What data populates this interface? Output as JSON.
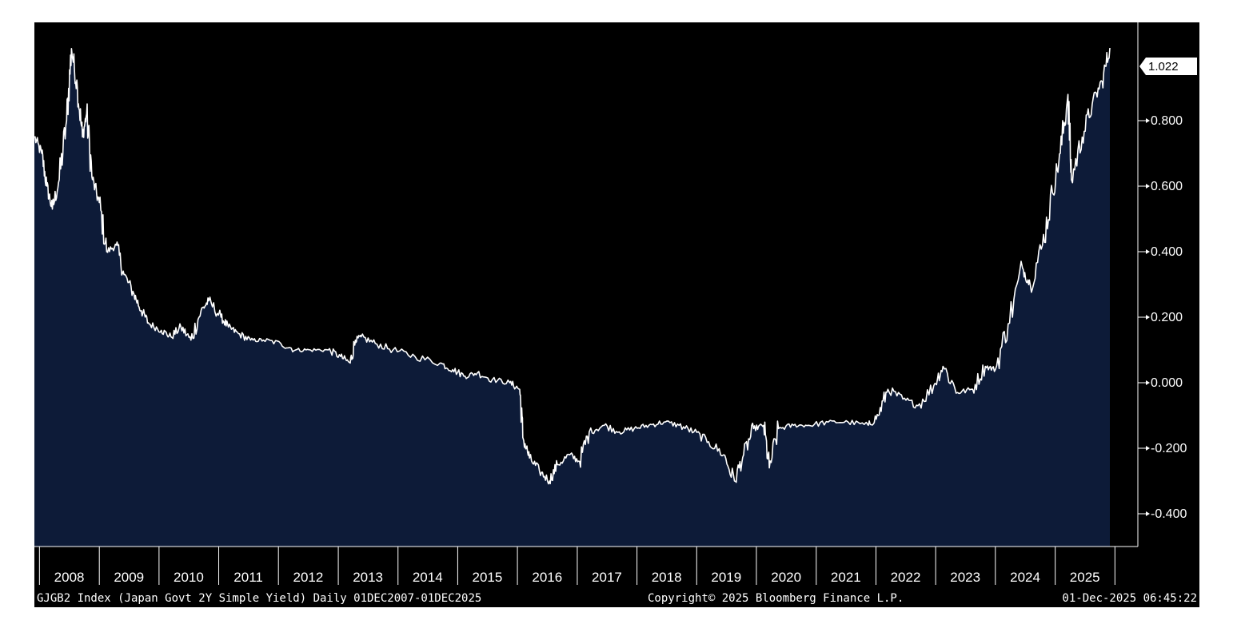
{
  "chart_data": {
    "type": "area",
    "x_range": [
      "2007-12-01",
      "2025-12-01"
    ],
    "ylim": [
      -0.5,
      1.1
    ],
    "y_ticks": [
      {
        "value": 0.8,
        "label": "0.800"
      },
      {
        "value": 0.6,
        "label": "0.600"
      },
      {
        "value": 0.4,
        "label": "0.400"
      },
      {
        "value": 0.2,
        "label": "0.200"
      },
      {
        "value": 0.0,
        "label": "0.000"
      },
      {
        "value": -0.2,
        "label": "-0.200"
      },
      {
        "value": -0.4,
        "label": "-0.400"
      }
    ],
    "x_tick_labels": [
      "2008",
      "2009",
      "2010",
      "2011",
      "2012",
      "2013",
      "2014",
      "2015",
      "2016",
      "2017",
      "2018",
      "2019",
      "2020",
      "2021",
      "2022",
      "2023",
      "2024",
      "2025"
    ],
    "last_value": {
      "value": 1.022,
      "label": "1.022"
    },
    "grid": false,
    "colors": {
      "background": "#000000",
      "area_fill": "#0d1b38",
      "line": "#ffffff",
      "footer_bg": "#000000"
    },
    "series": [
      {
        "x": [
          "2007-12-01",
          "2008-01-15",
          "2008-02-15",
          "2008-03-20",
          "2008-05-01",
          "2008-06-15",
          "2008-07-15",
          "2008-08-20",
          "2008-09-20",
          "2008-10-15",
          "2008-11-20",
          "2009-01-01",
          "2009-02-15",
          "2009-04-15",
          "2009-06-01",
          "2009-08-01",
          "2009-09-15",
          "2009-11-01",
          "2010-01-15",
          "2010-03-15",
          "2010-05-15",
          "2010-07-15",
          "2010-09-15",
          "2010-11-01",
          "2011-01-15",
          "2011-03-01",
          "2011-05-01",
          "2011-07-15",
          "2011-10-01",
          "2012-01-15",
          "2012-04-15",
          "2012-07-15",
          "2012-11-01",
          "2013-01-15",
          "2013-03-15",
          "2013-04-15",
          "2013-05-20",
          "2013-08-15",
          "2013-12-01",
          "2014-04-15",
          "2014-09-15",
          "2014-12-01",
          "2015-02-15",
          "2015-05-01",
          "2015-08-01",
          "2015-11-15",
          "2016-01-15",
          "2016-02-05",
          "2016-03-15",
          "2016-05-15",
          "2016-07-15",
          "2016-09-01",
          "2016-11-15",
          "2017-01-15",
          "2017-03-15",
          "2017-06-15",
          "2017-09-15",
          "2017-12-15",
          "2018-03-15",
          "2018-06-15",
          "2018-09-15",
          "2018-12-15",
          "2019-03-15",
          "2019-06-15",
          "2019-08-20",
          "2019-10-15",
          "2019-12-15",
          "2020-02-15",
          "2020-03-20",
          "2020-05-15",
          "2020-08-15",
          "2020-11-15",
          "2021-03-15",
          "2021-07-15",
          "2021-11-15",
          "2022-01-15",
          "2022-03-15",
          "2022-06-15",
          "2022-09-15",
          "2022-12-20",
          "2023-02-15",
          "2023-05-15",
          "2023-08-15",
          "2023-11-01",
          "2024-01-01",
          "2024-03-19",
          "2024-06-15",
          "2024-08-01",
          "2024-10-15",
          "2024-12-15",
          "2025-02-01",
          "2025-03-20",
          "2025-04-10",
          "2025-06-15",
          "2025-08-15",
          "2025-10-15",
          "2025-12-01"
        ],
        "values": [
          0.75,
          0.7,
          0.6,
          0.53,
          0.62,
          0.8,
          1.02,
          0.9,
          0.75,
          0.82,
          0.62,
          0.55,
          0.4,
          0.42,
          0.33,
          0.27,
          0.22,
          0.18,
          0.16,
          0.14,
          0.17,
          0.13,
          0.22,
          0.25,
          0.2,
          0.17,
          0.15,
          0.13,
          0.13,
          0.12,
          0.1,
          0.1,
          0.1,
          0.08,
          0.06,
          0.13,
          0.14,
          0.12,
          0.1,
          0.08,
          0.06,
          0.04,
          0.02,
          0.03,
          0.01,
          0.0,
          -0.02,
          -0.17,
          -0.23,
          -0.27,
          -0.3,
          -0.25,
          -0.22,
          -0.24,
          -0.15,
          -0.13,
          -0.15,
          -0.14,
          -0.13,
          -0.12,
          -0.13,
          -0.15,
          -0.18,
          -0.22,
          -0.3,
          -0.22,
          -0.14,
          -0.13,
          -0.26,
          -0.14,
          -0.13,
          -0.13,
          -0.12,
          -0.12,
          -0.13,
          -0.1,
          -0.02,
          -0.05,
          -0.07,
          -0.01,
          0.05,
          -0.03,
          -0.02,
          0.05,
          0.04,
          0.18,
          0.35,
          0.3,
          0.42,
          0.58,
          0.7,
          0.88,
          0.62,
          0.75,
          0.85,
          0.92,
          1.022
        ]
      }
    ]
  },
  "footer": {
    "series_info": "GJGB2 Index (Japan Govt 2Y Simple Yield) Daily 01DEC2007-01DEC2025",
    "copyright": "Copyright© 2025 Bloomberg Finance L.P.",
    "timestamp": "01-Dec-2025 06:45:22"
  }
}
